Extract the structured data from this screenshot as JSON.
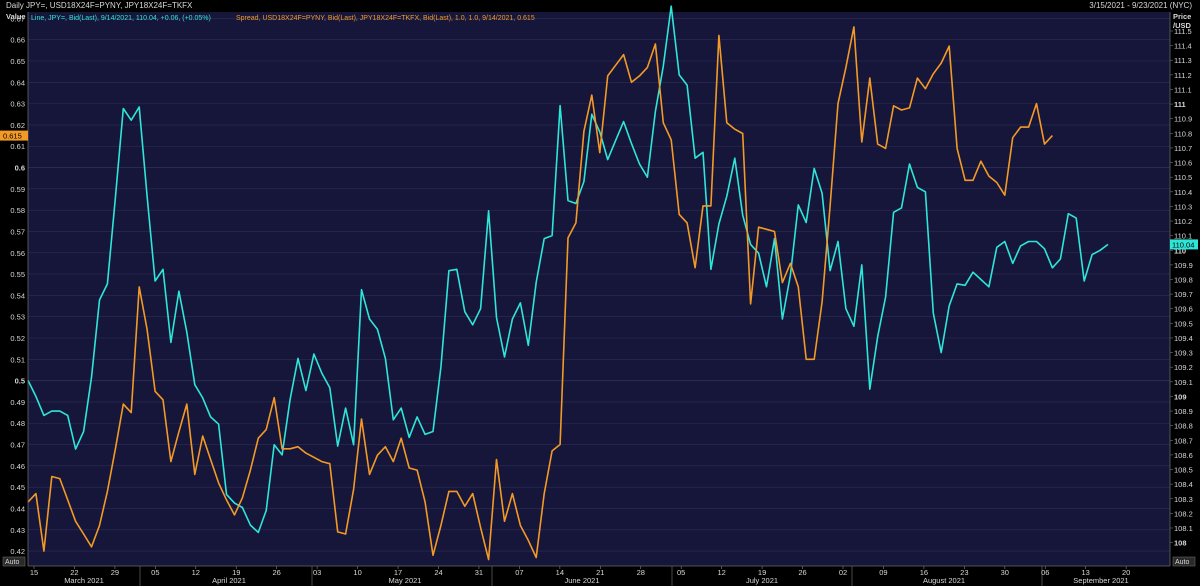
{
  "header": {
    "title": "Daily JPY=, USD18X24F=PYNY, JPY18X24F=TKFX",
    "date_range": "3/15/2021 - 9/23/2021 (NYC)"
  },
  "legend": {
    "line_text": "Line, JPY=, Bid(Last), 9/14/2021, 110.04, +0.06, (+0.05%)",
    "spread_text": "Spread, USD18X24F=PYNY, Bid(Last), JPY18X24F=TKFX, Bid(Last),  1.0, 1.0, 9/14/2021, 0.615"
  },
  "left_axis_title": "Value",
  "right_axis_title_1": "Price",
  "right_axis_title_2": "/USD",
  "auto_label": "Auto",
  "colors": {
    "background": "#16163a",
    "line_series": "#2ee6d8",
    "spread_series": "#f39a26",
    "grid": "#2c2c58",
    "axis_text": "#d8d8d8"
  },
  "chart_data": {
    "type": "line",
    "left_axis": {
      "ylim": [
        0.413,
        0.673
      ],
      "ticks": [
        "0.42",
        "0.43",
        "0.44",
        "0.45",
        "0.46",
        "0.47",
        "0.48",
        "0.49",
        "0.5",
        "0.51",
        "0.52",
        "0.53",
        "0.54",
        "0.55",
        "0.56",
        "0.57",
        "0.58",
        "0.59",
        "0.6",
        "0.61",
        "0.62",
        "0.63",
        "0.64",
        "0.65",
        "0.66",
        "0.67"
      ],
      "bold_ticks": [
        "0.5",
        "0.6"
      ],
      "current_value_label": "0.615"
    },
    "right_axis": {
      "unit": "JPY per USD",
      "ylim": [
        107.84,
        111.63
      ],
      "ticks": [
        "108",
        "108.1",
        "108.2",
        "108.3",
        "108.4",
        "108.5",
        "108.6",
        "108.7",
        "108.8",
        "108.9",
        "109",
        "109.1",
        "109.2",
        "109.3",
        "109.4",
        "109.5",
        "109.6",
        "109.7",
        "109.8",
        "109.9",
        "110",
        "110.1",
        "110.2",
        "110.3",
        "110.4",
        "110.5",
        "110.6",
        "110.7",
        "110.8",
        "110.9",
        "111",
        "111.1",
        "111.2",
        "111.3",
        "111.4",
        "111.5"
      ],
      "bold_ticks": [
        "108",
        "109",
        "110",
        "111"
      ],
      "current_value_label": "110.04"
    },
    "x_axis": {
      "day_ticks": [
        "15",
        "22",
        "29",
        "05",
        "12",
        "19",
        "26",
        "03",
        "10",
        "17",
        "24",
        "31",
        "07",
        "14",
        "21",
        "28",
        "05",
        "12",
        "19",
        "26",
        "02",
        "09",
        "16",
        "23",
        "30",
        "06",
        "13",
        "20"
      ],
      "months": [
        "March 2021",
        "April 2021",
        "May 2021",
        "June 2021",
        "July 2021",
        "August 2021",
        "September 2021"
      ],
      "grid": "horizontal"
    },
    "series": [
      {
        "name": "JPY=",
        "axis": "right",
        "values": [
          109.11,
          109.0,
          108.87,
          108.9,
          108.9,
          108.87,
          108.64,
          108.76,
          109.13,
          109.66,
          109.77,
          110.36,
          110.97,
          110.89,
          110.98,
          110.37,
          109.79,
          109.87,
          109.37,
          109.72,
          109.44,
          109.08,
          108.99,
          108.86,
          108.81,
          108.33,
          108.27,
          108.24,
          108.12,
          108.07,
          108.22,
          108.67,
          108.6,
          108.98,
          109.26,
          109.04,
          109.29,
          109.16,
          109.06,
          108.66,
          108.92,
          108.67,
          109.73,
          109.53,
          109.46,
          109.26,
          108.84,
          108.92,
          108.72,
          108.86,
          108.74,
          108.76,
          109.2,
          109.86,
          109.87,
          109.58,
          109.49,
          109.6,
          110.27,
          109.54,
          109.27,
          109.53,
          109.64,
          109.35,
          109.78,
          110.08,
          110.1,
          110.99,
          110.34,
          110.32,
          110.47,
          110.93,
          110.81,
          110.62,
          110.75,
          110.88,
          110.73,
          110.59,
          110.5,
          110.95,
          111.26,
          111.67,
          111.2,
          111.13,
          110.63,
          110.67,
          109.87,
          110.18,
          110.37,
          110.63,
          110.24,
          110.04,
          109.98,
          109.75,
          110.08,
          109.53,
          109.83,
          110.31,
          110.19,
          110.56,
          110.39,
          109.86,
          110.06,
          109.6,
          109.48,
          109.9,
          109.05,
          109.41,
          109.68,
          110.26,
          110.29,
          110.59,
          110.43,
          110.4,
          109.57,
          109.3,
          109.62,
          109.77,
          109.76,
          109.85,
          109.8,
          109.75,
          110.02,
          110.06,
          109.91,
          110.03,
          110.06,
          110.06,
          110.01,
          109.88,
          109.94,
          110.25,
          110.22,
          109.79,
          109.97,
          110.0,
          110.04
        ]
      },
      {
        "name": "USD18X24F=PYNY / JPY18X24F=TKFX",
        "axis": "left",
        "values": [
          0.443,
          0.447,
          0.42,
          0.455,
          0.454,
          0.444,
          0.434,
          0.428,
          0.422,
          0.432,
          0.448,
          0.468,
          0.489,
          0.485,
          0.544,
          0.524,
          0.495,
          0.491,
          0.462,
          0.476,
          0.489,
          0.456,
          0.474,
          0.463,
          0.452,
          0.444,
          0.437,
          0.445,
          0.458,
          0.473,
          0.477,
          0.492,
          0.468,
          0.468,
          0.469,
          0.466,
          0.464,
          0.462,
          0.461,
          0.429,
          0.428,
          0.449,
          0.482,
          0.456,
          0.465,
          0.469,
          0.462,
          0.473,
          0.459,
          0.458,
          0.443,
          0.418,
          0.432,
          0.448,
          0.448,
          0.441,
          0.447,
          0.431,
          0.416,
          0.463,
          0.434,
          0.447,
          0.432,
          0.425,
          0.417,
          0.447,
          0.467,
          0.47,
          0.567,
          0.574,
          0.617,
          0.634,
          0.607,
          0.643,
          0.648,
          0.653,
          0.64,
          0.643,
          0.647,
          0.658,
          0.621,
          0.613,
          0.578,
          0.574,
          0.553,
          0.582,
          0.582,
          0.662,
          0.621,
          0.618,
          0.616,
          0.536,
          0.572,
          0.571,
          0.57,
          0.546,
          0.555,
          0.544,
          0.51,
          0.51,
          0.537,
          0.582,
          0.63,
          0.647,
          0.666,
          0.612,
          0.642,
          0.611,
          0.609,
          0.629,
          0.627,
          0.628,
          0.642,
          0.637,
          0.644,
          0.649,
          0.657,
          0.609,
          0.594,
          0.594,
          0.603,
          0.596,
          0.593,
          0.587,
          0.614,
          0.619,
          0.619,
          0.63,
          0.611,
          0.615
        ]
      }
    ]
  }
}
